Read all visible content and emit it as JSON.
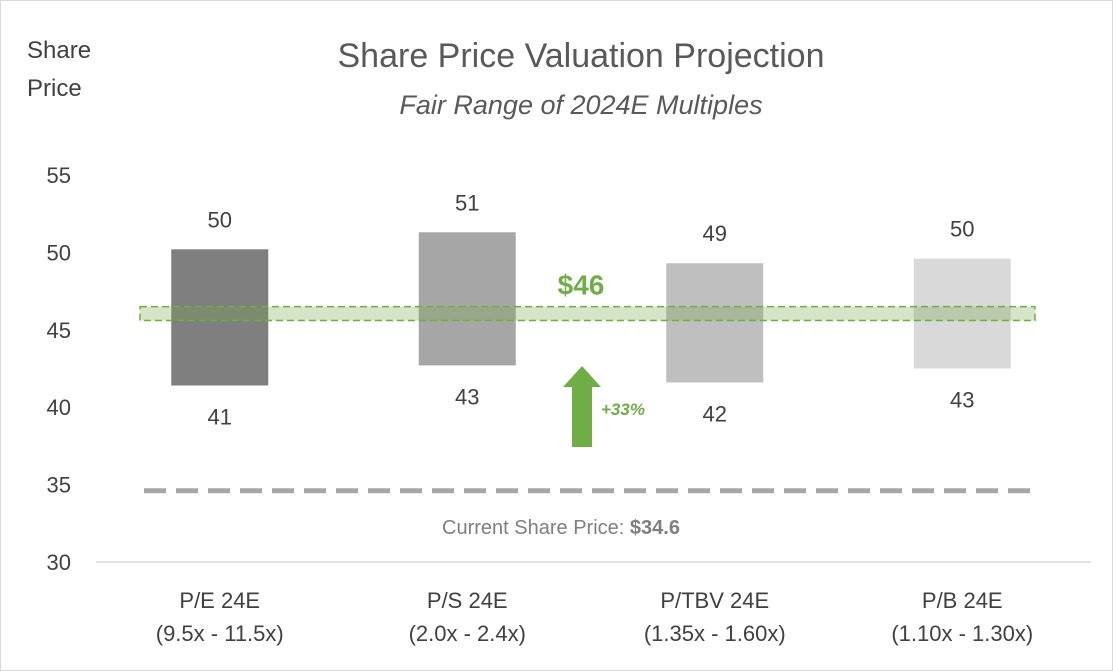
{
  "chart_data": {
    "type": "floating-bar",
    "title": "Share Price Valuation Projection",
    "subtitle": "Fair Range of 2024E Multiples",
    "ylabel_lines": [
      "Share",
      "Price"
    ],
    "ylim": [
      30,
      55
    ],
    "yticks": [
      30,
      35,
      40,
      45,
      50,
      55
    ],
    "categories": [
      {
        "line1": "P/E 24E",
        "line2": "(9.5x - 11.5x)"
      },
      {
        "line1": "P/S 24E",
        "line2": "(2.0x - 2.4x)"
      },
      {
        "line1": "P/TBV 24E",
        "line2": "(1.35x - 1.60x)"
      },
      {
        "line1": "P/B 24E",
        "line2": "(1.10x - 1.30x)"
      }
    ],
    "ranges": [
      {
        "low": 41.4,
        "high": 50.2,
        "low_label": "41",
        "high_label": "50",
        "color": "#7f7f7f"
      },
      {
        "low": 42.7,
        "high": 51.3,
        "low_label": "43",
        "high_label": "51",
        "color": "#a6a6a6"
      },
      {
        "low": 41.6,
        "high": 49.3,
        "low_label": "42",
        "high_label": "49",
        "color": "#bfbfbf"
      },
      {
        "low": 42.5,
        "high": 49.6,
        "low_label": "43",
        "high_label": "50",
        "color": "#d9d9d9"
      }
    ],
    "target": {
      "value": 46,
      "band_low": 45.6,
      "band_high": 46.5,
      "label": "$46",
      "color": "#70ad47"
    },
    "upside": {
      "label": "+33%",
      "color": "#70ad47"
    },
    "current_price": {
      "value": 34.6,
      "label_prefix": "Current Share Price: ",
      "label_value": "$34.6",
      "color": "#a6a6a6"
    }
  }
}
